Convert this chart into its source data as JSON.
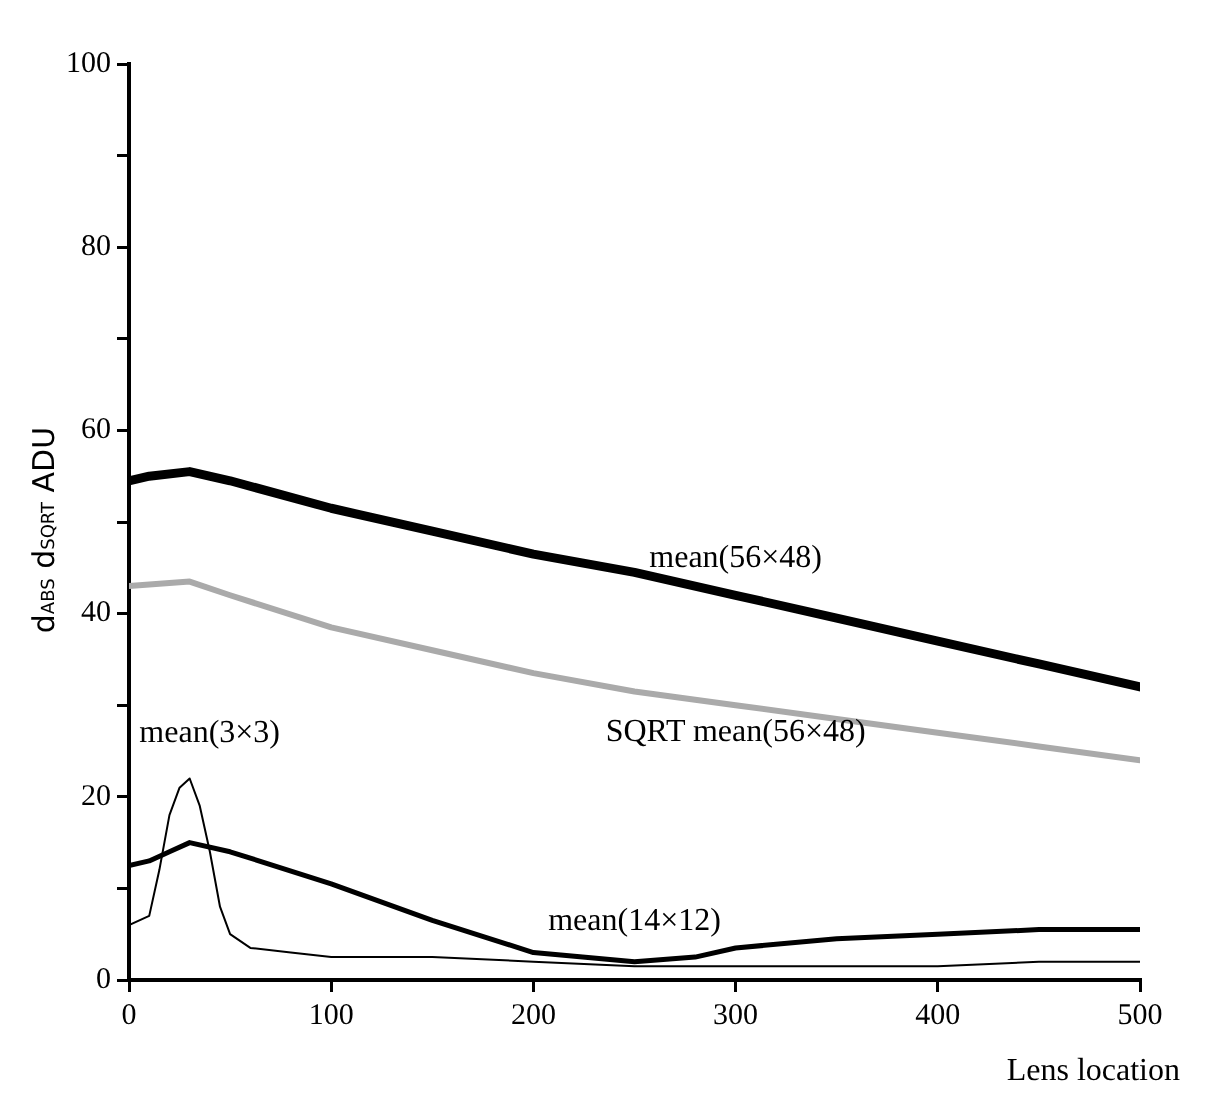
{
  "chart_data": {
    "type": "line",
    "xlabel": "Lens location",
    "ylabel": "d$_{ABS}$ d$_{SQRT}$ ADU",
    "xlim": [
      0,
      500
    ],
    "xticks": [
      0,
      100,
      200,
      300,
      400,
      500
    ],
    "ylim": [
      0,
      100
    ],
    "yticks": [
      0,
      {
        "value": 10,
        "label": null
      },
      20,
      {
        "value": 30,
        "label": null
      },
      40,
      {
        "value": 50,
        "label": null
      },
      60,
      {
        "value": 70,
        "label": null
      },
      80,
      {
        "value": 90,
        "label": null
      },
      100
    ],
    "grid": false,
    "legend": false,
    "marker": "none",
    "line_style": "solid",
    "series": [
      {
        "name": "mean(56×48)",
        "color": "#000000",
        "x": [
          0,
          10,
          30,
          50,
          100,
          150,
          200,
          250,
          300,
          350,
          400,
          450,
          500
        ],
        "values": [
          54.5,
          55,
          55.5,
          54.5,
          51.5,
          49,
          46.5,
          44.5,
          42,
          39.5,
          37,
          34.5,
          32
        ]
      },
      {
        "name": "SQRT mean(56×48)",
        "color": "#aaaaaa",
        "x": [
          0,
          30,
          50,
          100,
          150,
          200,
          250,
          300,
          350,
          400,
          450,
          500
        ],
        "values": [
          43,
          43.5,
          42,
          38.5,
          36,
          33.5,
          31.5,
          30,
          28.5,
          27,
          25.5,
          24
        ]
      },
      {
        "name": "mean(3×3)",
        "color": "#000000",
        "x": [
          0,
          10,
          15,
          20,
          25,
          30,
          35,
          40,
          45,
          50,
          60,
          80,
          100,
          150,
          200,
          250,
          300,
          350,
          400,
          450,
          500
        ],
        "values": [
          6,
          7,
          12,
          18,
          21,
          22,
          19,
          14,
          8,
          5,
          3.5,
          3,
          2.5,
          2.5,
          2,
          1.5,
          1.5,
          1.5,
          1.5,
          2,
          2
        ]
      },
      {
        "name": "mean(14×12)",
        "color": "#000000",
        "x": [
          0,
          10,
          20,
          30,
          50,
          100,
          150,
          200,
          250,
          280,
          300,
          350,
          400,
          450,
          500
        ],
        "values": [
          12.5,
          13,
          14,
          15,
          14,
          10.5,
          6.5,
          3,
          2,
          2.5,
          3.5,
          4.5,
          5,
          5.5,
          5.5
        ]
      }
    ]
  }
}
